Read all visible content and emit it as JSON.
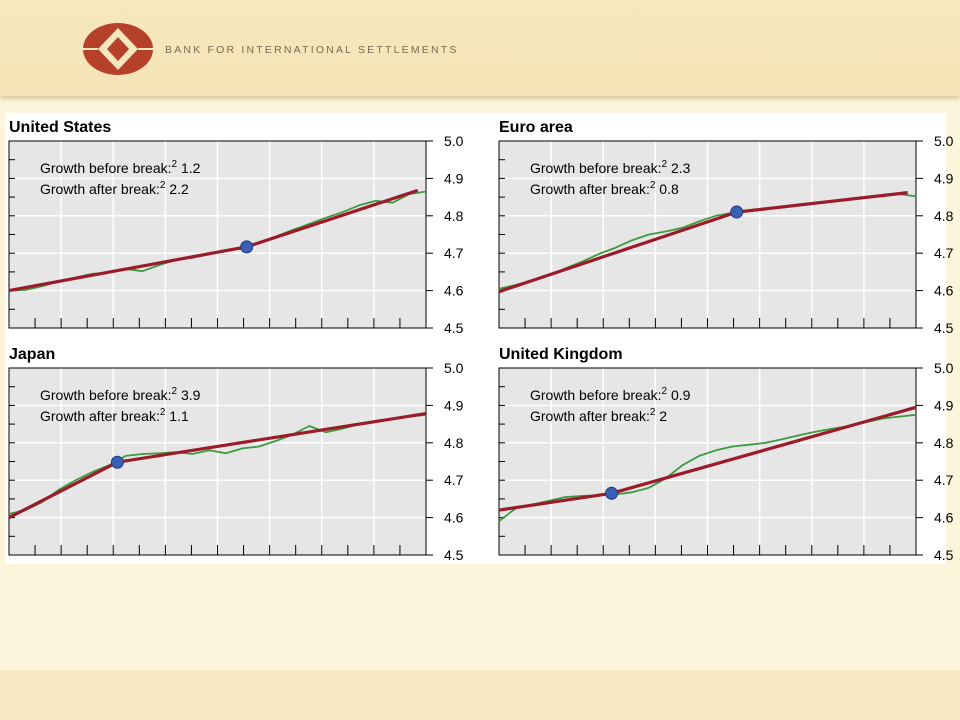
{
  "header": {
    "bank_name": "BANK FOR INTERNATIONAL SETTLEMENTS",
    "logo_icon": "bis-logo-icon",
    "logo_color": "#b5412a"
  },
  "colors": {
    "trend": "#9b1b2a",
    "actual": "#3c9a3c",
    "marker": "#3b5fb5",
    "plot_bg": "#e6e6e6",
    "grid": "#ffffff"
  },
  "chart_data": [
    {
      "type": "line",
      "title": "United States",
      "annotations": [
        {
          "label": "Growth before break:",
          "sup": "2",
          "value": "1.2"
        },
        {
          "label": "Growth after break:",
          "sup": "2",
          "value": "2.2"
        }
      ],
      "ylim": [
        4.5,
        5.0
      ],
      "yticks": [
        "5.0",
        "4.9",
        "4.8",
        "4.7",
        "4.6",
        "4.5"
      ],
      "xlim": [
        0,
        100
      ],
      "grid": true,
      "break_point": {
        "x": 57,
        "y": 4.717
      },
      "series": [
        {
          "role": "trend",
          "x": [
            0,
            57,
            98
          ],
          "y": [
            4.6,
            4.717,
            4.868
          ]
        },
        {
          "role": "actual",
          "x": [
            0,
            4,
            8,
            12,
            16,
            20,
            24,
            28,
            32,
            36,
            40,
            44,
            48,
            52,
            56,
            60,
            64,
            68,
            72,
            76,
            80,
            84,
            88,
            92,
            96,
            100
          ],
          "y": [
            4.6,
            4.602,
            4.612,
            4.625,
            4.635,
            4.645,
            4.648,
            4.658,
            4.652,
            4.668,
            4.682,
            4.688,
            4.697,
            4.708,
            4.712,
            4.727,
            4.745,
            4.762,
            4.778,
            4.795,
            4.81,
            4.828,
            4.84,
            4.835,
            4.858,
            4.865
          ]
        }
      ]
    },
    {
      "type": "line",
      "title": "Euro area",
      "annotations": [
        {
          "label": "Growth before break:",
          "sup": "2",
          "value": "2.3"
        },
        {
          "label": "Growth after break:",
          "sup": "2",
          "value": "0.8"
        }
      ],
      "ylim": [
        4.5,
        5.0
      ],
      "yticks": [
        "5.0",
        "4.9",
        "4.8",
        "4.7",
        "4.6",
        "4.5"
      ],
      "xlim": [
        0,
        100
      ],
      "grid": true,
      "break_point": {
        "x": 57,
        "y": 4.81
      },
      "series": [
        {
          "role": "trend",
          "x": [
            0,
            57,
            98
          ],
          "y": [
            4.597,
            4.81,
            4.862
          ]
        },
        {
          "role": "actual",
          "x": [
            0,
            4,
            8,
            12,
            16,
            20,
            24,
            28,
            32,
            36,
            40,
            44,
            48,
            52,
            56,
            60,
            64,
            68,
            72,
            76,
            80,
            84,
            88,
            92,
            96,
            100
          ],
          "y": [
            4.605,
            4.615,
            4.628,
            4.642,
            4.66,
            4.678,
            4.698,
            4.715,
            4.735,
            4.75,
            4.758,
            4.768,
            4.785,
            4.8,
            4.808,
            4.812,
            4.818,
            4.822,
            4.83,
            4.835,
            4.838,
            4.845,
            4.85,
            4.852,
            4.858,
            4.852
          ]
        }
      ]
    },
    {
      "type": "line",
      "title": "Japan",
      "annotations": [
        {
          "label": "Growth before break:",
          "sup": "2",
          "value": "3.9"
        },
        {
          "label": "Growth after break:",
          "sup": "2",
          "value": "1.1"
        }
      ],
      "ylim": [
        4.5,
        5.0
      ],
      "yticks": [
        "5.0",
        "4.9",
        "4.8",
        "4.7",
        "4.6",
        "4.5"
      ],
      "xlim": [
        0,
        100
      ],
      "grid": true,
      "break_point": {
        "x": 26,
        "y": 4.748
      },
      "series": [
        {
          "role": "trend",
          "x": [
            0,
            26,
            100
          ],
          "y": [
            4.6,
            4.748,
            4.878
          ]
        },
        {
          "role": "actual",
          "x": [
            0,
            4,
            8,
            12,
            16,
            20,
            24,
            28,
            32,
            36,
            40,
            44,
            48,
            52,
            56,
            60,
            64,
            68,
            72,
            76,
            80,
            84,
            88,
            92,
            96,
            100
          ],
          "y": [
            4.61,
            4.62,
            4.642,
            4.675,
            4.7,
            4.722,
            4.74,
            4.765,
            4.77,
            4.772,
            4.775,
            4.77,
            4.78,
            4.772,
            4.785,
            4.79,
            4.805,
            4.822,
            4.845,
            4.828,
            4.838,
            4.85,
            4.858,
            4.865,
            4.87,
            4.875
          ]
        }
      ]
    },
    {
      "type": "line",
      "title": "United Kingdom",
      "annotations": [
        {
          "label": "Growth before break:",
          "sup": "2",
          "value": "0.9"
        },
        {
          "label": "Growth after break:",
          "sup": "2",
          "value": "2"
        }
      ],
      "ylim": [
        4.5,
        5.0
      ],
      "yticks": [
        "5.0",
        "4.9",
        "4.8",
        "4.7",
        "4.6",
        "4.5"
      ],
      "xlim": [
        0,
        100
      ],
      "grid": true,
      "break_point": {
        "x": 27,
        "y": 4.665
      },
      "series": [
        {
          "role": "trend",
          "x": [
            0,
            27,
            100
          ],
          "y": [
            4.62,
            4.665,
            4.895
          ]
        },
        {
          "role": "actual",
          "x": [
            0,
            4,
            8,
            12,
            16,
            20,
            24,
            28,
            32,
            36,
            40,
            44,
            48,
            52,
            56,
            60,
            64,
            68,
            72,
            76,
            80,
            84,
            88,
            92,
            96,
            100
          ],
          "y": [
            4.59,
            4.625,
            4.635,
            4.645,
            4.655,
            4.658,
            4.66,
            4.662,
            4.668,
            4.68,
            4.705,
            4.74,
            4.765,
            4.78,
            4.79,
            4.795,
            4.8,
            4.81,
            4.82,
            4.83,
            4.838,
            4.845,
            4.855,
            4.865,
            4.87,
            4.875
          ]
        }
      ]
    }
  ]
}
